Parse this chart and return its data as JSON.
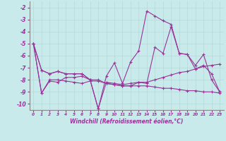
{
  "xlabel": "Windchill (Refroidissement éolien,°C)",
  "background_color": "#c8eaea",
  "grid_color": "#b8d8d8",
  "line_color": "#993399",
  "xlim": [
    -0.5,
    23.5
  ],
  "ylim": [
    -10.5,
    -1.5
  ],
  "yticks": [
    -10,
    -9,
    -8,
    -7,
    -6,
    -5,
    -4,
    -3,
    -2
  ],
  "xticks": [
    0,
    1,
    2,
    3,
    4,
    5,
    6,
    7,
    8,
    9,
    10,
    11,
    12,
    13,
    14,
    15,
    16,
    17,
    18,
    19,
    20,
    21,
    22,
    23
  ],
  "series": [
    [
      -5.0,
      -7.2,
      -7.5,
      -7.3,
      -7.5,
      -7.5,
      -7.5,
      -8.0,
      -10.4,
      -8.2,
      -8.3,
      -8.4,
      -8.3,
      -8.2,
      -8.2,
      -8.0,
      -7.8,
      -7.6,
      -7.4,
      -7.3,
      -7.1,
      -6.9,
      -6.8,
      -6.7
    ],
    [
      -5.0,
      -9.1,
      -8.0,
      -8.0,
      -8.1,
      -8.2,
      -8.3,
      -8.1,
      -8.1,
      -8.3,
      -8.4,
      -8.5,
      -8.5,
      -8.5,
      -8.5,
      -8.6,
      -8.7,
      -8.7,
      -8.8,
      -8.9,
      -8.9,
      -9.0,
      -9.0,
      -9.1
    ],
    [
      -5.0,
      -7.2,
      -7.5,
      -7.3,
      -7.5,
      -7.5,
      -7.5,
      -8.0,
      -10.4,
      -7.7,
      -6.6,
      -8.3,
      -6.5,
      -5.6,
      -2.3,
      -2.7,
      -3.1,
      -3.4,
      -5.8,
      -5.9,
      -7.1,
      -6.8,
      -7.5,
      -9.0
    ],
    [
      -5.0,
      -9.1,
      -8.1,
      -8.2,
      -7.8,
      -7.8,
      -7.7,
      -8.0,
      -8.0,
      -8.3,
      -8.4,
      -8.5,
      -8.5,
      -8.2,
      -8.3,
      -5.3,
      -5.8,
      -3.6,
      -5.8,
      -5.9,
      -6.8,
      -5.9,
      -8.0,
      -9.0
    ]
  ]
}
